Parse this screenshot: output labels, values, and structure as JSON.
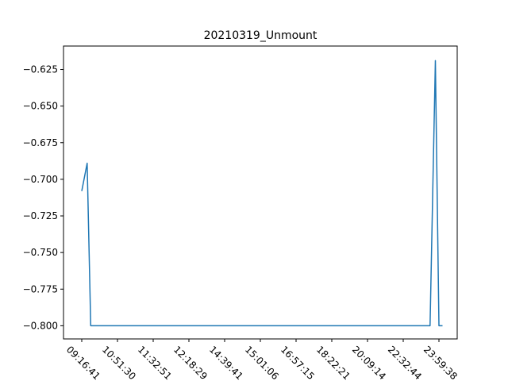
{
  "chart_data": {
    "type": "line",
    "title": "20210319_Unmount",
    "xlabel": "",
    "ylabel": "",
    "x_tick_labels": [
      "09:16:41",
      "10:51:30",
      "11:32:51",
      "12:18:29",
      "14:39:41",
      "15:01:06",
      "16:57:15",
      "18:22:21",
      "20:09:14",
      "22:32:44",
      "23:59:38"
    ],
    "y_ticks": [
      -0.625,
      -0.65,
      -0.675,
      -0.7,
      -0.725,
      -0.75,
      -0.775,
      -0.8
    ],
    "y_tick_labels": [
      "−0.625",
      "−0.650",
      "−0.675",
      "−0.700",
      "−0.725",
      "−0.750",
      "−0.775",
      "−0.800"
    ],
    "ylim": [
      -0.809,
      -0.609
    ],
    "grid": false,
    "series": [
      {
        "color": "#1f77b4",
        "x": [
          0.0,
          0.15,
          0.25,
          1.0,
          2.0,
          3.0,
          4.0,
          5.0,
          6.0,
          7.0,
          8.0,
          9.0,
          9.75,
          9.9,
          10.0,
          10.1
        ],
        "y": [
          -0.708,
          -0.689,
          -0.8,
          -0.8,
          -0.8,
          -0.8,
          -0.8,
          -0.8,
          -0.8,
          -0.8,
          -0.8,
          -0.8,
          -0.8,
          -0.619,
          -0.8,
          -0.8
        ]
      }
    ]
  }
}
